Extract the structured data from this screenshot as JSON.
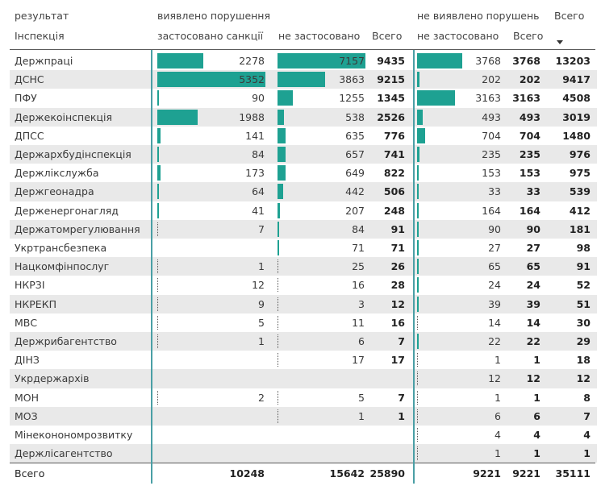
{
  "header": {
    "row_label": "результат",
    "col_label": "Інспекція",
    "group1": "виявлено порушення",
    "group2": "не виявлено порушень",
    "total": "Всего",
    "sub1": "застосовано санкції",
    "sub2": "не застосовано",
    "sub3": "Всего",
    "sub4": "не застосовано",
    "sub5": "Всего"
  },
  "rows": [
    {
      "name": "Держпраці",
      "a": "2278",
      "b": "7157",
      "c": "9435",
      "d": "3768",
      "e": "3768",
      "f": "13203"
    },
    {
      "name": "ДСНС",
      "a": "5352",
      "b": "3863",
      "c": "9215",
      "d": "202",
      "e": "202",
      "f": "9417"
    },
    {
      "name": "ПФУ",
      "a": "90",
      "b": "1255",
      "c": "1345",
      "d": "3163",
      "e": "3163",
      "f": "4508"
    },
    {
      "name": "Держекоінспекція",
      "a": "1988",
      "b": "538",
      "c": "2526",
      "d": "493",
      "e": "493",
      "f": "3019"
    },
    {
      "name": "ДПСС",
      "a": "141",
      "b": "635",
      "c": "776",
      "d": "704",
      "e": "704",
      "f": "1480"
    },
    {
      "name": "Держархбудінспекція",
      "a": "84",
      "b": "657",
      "c": "741",
      "d": "235",
      "e": "235",
      "f": "976"
    },
    {
      "name": "Держлікслужба",
      "a": "173",
      "b": "649",
      "c": "822",
      "d": "153",
      "e": "153",
      "f": "975"
    },
    {
      "name": "Держгеонадра",
      "a": "64",
      "b": "442",
      "c": "506",
      "d": "33",
      "e": "33",
      "f": "539"
    },
    {
      "name": "Держенергонагляд",
      "a": "41",
      "b": "207",
      "c": "248",
      "d": "164",
      "e": "164",
      "f": "412"
    },
    {
      "name": "Держатомрегулювання",
      "a": "7",
      "b": "84",
      "c": "91",
      "d": "90",
      "e": "90",
      "f": "181"
    },
    {
      "name": "Укртрансбезпека",
      "a": "",
      "b": "71",
      "c": "71",
      "d": "27",
      "e": "27",
      "f": "98"
    },
    {
      "name": "Нацкомфінпослуг",
      "a": "1",
      "b": "25",
      "c": "26",
      "d": "65",
      "e": "65",
      "f": "91"
    },
    {
      "name": "НКРЗІ",
      "a": "12",
      "b": "16",
      "c": "28",
      "d": "24",
      "e": "24",
      "f": "52"
    },
    {
      "name": "НКРЕКП",
      "a": "9",
      "b": "3",
      "c": "12",
      "d": "39",
      "e": "39",
      "f": "51"
    },
    {
      "name": "МВС",
      "a": "5",
      "b": "11",
      "c": "16",
      "d": "14",
      "e": "14",
      "f": "30"
    },
    {
      "name": "Держрибагентство",
      "a": "1",
      "b": "6",
      "c": "7",
      "d": "22",
      "e": "22",
      "f": "29"
    },
    {
      "name": "ДІНЗ",
      "a": "",
      "b": "17",
      "c": "17",
      "d": "1",
      "e": "1",
      "f": "18"
    },
    {
      "name": "Укрдержархів",
      "a": "",
      "b": "",
      "c": "",
      "d": "12",
      "e": "12",
      "f": "12"
    },
    {
      "name": "МОН",
      "a": "2",
      "b": "5",
      "c": "7",
      "d": "1",
      "e": "1",
      "f": "8"
    },
    {
      "name": "МОЗ",
      "a": "",
      "b": "1",
      "c": "1",
      "d": "6",
      "e": "6",
      "f": "7"
    },
    {
      "name": "Мінеконономрозвитку",
      "a": "",
      "b": "",
      "c": "",
      "d": "4",
      "e": "4",
      "f": "4"
    },
    {
      "name": "Держлісагентство",
      "a": "",
      "b": "",
      "c": "",
      "d": "1",
      "e": "1",
      "f": "1"
    }
  ],
  "totals": {
    "name": "Всего",
    "a": "10248",
    "b": "15642",
    "c": "25890",
    "d": "9221",
    "e": "9221",
    "f": "35111"
  },
  "colors": {
    "bar": "#1ea192",
    "divider": "#4a9fa5",
    "alt_row": "#e9e9e9"
  }
}
